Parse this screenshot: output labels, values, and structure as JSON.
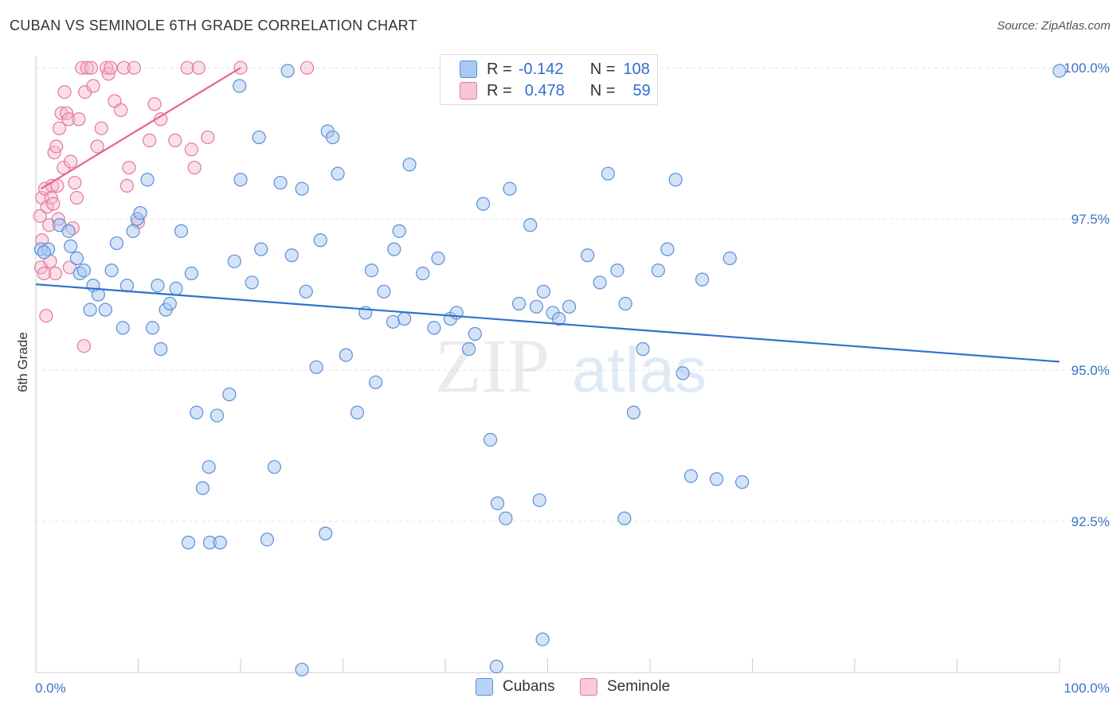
{
  "header": {
    "title": "CUBAN VS SEMINOLE 6TH GRADE CORRELATION CHART",
    "source": "Source: ZipAtlas.com"
  },
  "watermark": {
    "part1": "ZIP",
    "part2": "atlas"
  },
  "colors": {
    "blue_fill": "#a9c8f2",
    "blue_stroke": "#5b8fd6",
    "blue_line": "#2f72cc",
    "pink_fill": "#f7b8cb",
    "pink_stroke": "#e37a9c",
    "pink_line": "#e8648f",
    "axis_label": "#3a73c9"
  },
  "legend": {
    "rows": [
      {
        "r_label": "R =",
        "r_value": "-0.142",
        "n_label": "N =",
        "n_value": "108"
      },
      {
        "r_label": "R =",
        "r_value": "0.478",
        "n_label": "N =",
        "n_value": "59"
      }
    ]
  },
  "bottom_legend": {
    "cubans": "Cubans",
    "seminole": "Seminole"
  },
  "chart_data": {
    "type": "scatter",
    "ylabel": "6th Grade",
    "xlim": [
      0,
      100
    ],
    "ylim": [
      90.0,
      100.2
    ],
    "x_tick_labels": [
      "0.0%",
      "100.0%"
    ],
    "y_ticks": [
      92.5,
      95.0,
      97.5,
      100.0
    ],
    "y_tick_labels": [
      "92.5%",
      "95.0%",
      "97.5%",
      "100.0%"
    ],
    "grid": true,
    "series": [
      {
        "name": "Cubans",
        "trend": [
          [
            0,
            96.42
          ],
          [
            100,
            95.14
          ]
        ],
        "points": [
          [
            0.5,
            97.0
          ],
          [
            1.2,
            97.0
          ],
          [
            2.3,
            97.4
          ],
          [
            3.4,
            97.05
          ],
          [
            3.2,
            97.3
          ],
          [
            4.0,
            96.85
          ],
          [
            4.3,
            96.6
          ],
          [
            4.7,
            96.65
          ],
          [
            5.3,
            96.0
          ],
          [
            5.6,
            96.4
          ],
          [
            6.1,
            96.25
          ],
          [
            6.8,
            96.0
          ],
          [
            7.4,
            96.65
          ],
          [
            7.9,
            97.1
          ],
          [
            8.5,
            95.7
          ],
          [
            8.9,
            96.4
          ],
          [
            9.5,
            97.3
          ],
          [
            9.9,
            97.5
          ],
          [
            10.2,
            97.6
          ],
          [
            10.9,
            98.15
          ],
          [
            11.4,
            95.7
          ],
          [
            11.9,
            96.4
          ],
          [
            12.2,
            95.35
          ],
          [
            12.7,
            96.0
          ],
          [
            13.1,
            96.1
          ],
          [
            13.7,
            96.35
          ],
          [
            14.2,
            97.3
          ],
          [
            15.2,
            96.6
          ],
          [
            15.7,
            94.3
          ],
          [
            16.3,
            93.05
          ],
          [
            16.9,
            93.4
          ],
          [
            17.7,
            94.25
          ],
          [
            18.9,
            94.6
          ],
          [
            19.4,
            96.8
          ],
          [
            19.9,
            99.7
          ],
          [
            20.0,
            98.15
          ],
          [
            21.1,
            96.45
          ],
          [
            21.8,
            98.85
          ],
          [
            22.0,
            97.0
          ],
          [
            23.3,
            93.4
          ],
          [
            23.9,
            98.1
          ],
          [
            24.6,
            99.95
          ],
          [
            25.0,
            96.9
          ],
          [
            26.0,
            98.0
          ],
          [
            26.4,
            96.3
          ],
          [
            27.4,
            95.05
          ],
          [
            27.8,
            97.15
          ],
          [
            28.5,
            98.95
          ],
          [
            29.0,
            98.85
          ],
          [
            29.5,
            98.25
          ],
          [
            30.3,
            95.25
          ],
          [
            31.4,
            94.3
          ],
          [
            32.2,
            95.95
          ],
          [
            32.8,
            96.65
          ],
          [
            33.2,
            94.8
          ],
          [
            34.0,
            96.3
          ],
          [
            35.0,
            97.0
          ],
          [
            34.9,
            95.8
          ],
          [
            36.0,
            95.85
          ],
          [
            35.5,
            97.3
          ],
          [
            36.5,
            98.4
          ],
          [
            37.8,
            96.6
          ],
          [
            38.9,
            95.7
          ],
          [
            39.3,
            96.85
          ],
          [
            40.5,
            95.85
          ],
          [
            41.1,
            95.95
          ],
          [
            42.3,
            95.35
          ],
          [
            42.9,
            95.6
          ],
          [
            43.7,
            97.75
          ],
          [
            44.4,
            93.85
          ],
          [
            45.1,
            92.8
          ],
          [
            46.3,
            98.0
          ],
          [
            47.2,
            96.1
          ],
          [
            48.3,
            97.4
          ],
          [
            48.9,
            96.05
          ],
          [
            49.6,
            96.3
          ],
          [
            50.5,
            95.95
          ],
          [
            51.1,
            95.85
          ],
          [
            52.1,
            96.05
          ],
          [
            53.9,
            96.9
          ],
          [
            55.1,
            96.45
          ],
          [
            55.9,
            98.25
          ],
          [
            56.8,
            96.65
          ],
          [
            57.6,
            96.1
          ],
          [
            58.4,
            94.3
          ],
          [
            59.3,
            95.35
          ],
          [
            60.8,
            96.65
          ],
          [
            61.7,
            97.0
          ],
          [
            62.5,
            98.15
          ],
          [
            63.2,
            94.95
          ],
          [
            64.0,
            93.25
          ],
          [
            65.1,
            96.5
          ],
          [
            66.5,
            93.2
          ],
          [
            67.8,
            96.85
          ],
          [
            69.0,
            93.15
          ],
          [
            0.8,
            96.95
          ],
          [
            17.0,
            92.15
          ],
          [
            14.9,
            92.15
          ],
          [
            22.6,
            92.2
          ],
          [
            18.0,
            92.15
          ],
          [
            28.3,
            92.3
          ],
          [
            45.9,
            92.55
          ],
          [
            49.2,
            92.85
          ],
          [
            57.5,
            92.55
          ],
          [
            49.5,
            90.55
          ],
          [
            26.0,
            90.05
          ],
          [
            45.0,
            90.1
          ],
          [
            100.0,
            99.95
          ]
        ]
      },
      {
        "name": "Seminole",
        "trend": [
          [
            0.5,
            98.0
          ],
          [
            20.0,
            100.0
          ]
        ],
        "points": [
          [
            0.4,
            97.55
          ],
          [
            0.6,
            97.85
          ],
          [
            0.9,
            98.0
          ],
          [
            1.1,
            97.7
          ],
          [
            1.3,
            97.4
          ],
          [
            1.5,
            97.85
          ],
          [
            1.6,
            98.05
          ],
          [
            1.8,
            98.6
          ],
          [
            2.0,
            98.7
          ],
          [
            2.1,
            98.05
          ],
          [
            2.3,
            99.0
          ],
          [
            2.5,
            99.25
          ],
          [
            2.7,
            98.35
          ],
          [
            2.8,
            99.6
          ],
          [
            3.0,
            99.25
          ],
          [
            3.2,
            99.15
          ],
          [
            3.4,
            98.45
          ],
          [
            3.6,
            97.35
          ],
          [
            3.8,
            98.1
          ],
          [
            4.0,
            97.85
          ],
          [
            4.2,
            99.15
          ],
          [
            4.5,
            100.0
          ],
          [
            4.8,
            99.6
          ],
          [
            5.0,
            100.0
          ],
          [
            5.4,
            100.0
          ],
          [
            5.6,
            99.7
          ],
          [
            6.0,
            98.7
          ],
          [
            6.4,
            99.0
          ],
          [
            6.9,
            100.0
          ],
          [
            7.1,
            99.9
          ],
          [
            7.3,
            100.0
          ],
          [
            7.7,
            99.45
          ],
          [
            8.3,
            99.3
          ],
          [
            8.6,
            100.0
          ],
          [
            8.9,
            98.05
          ],
          [
            9.1,
            98.35
          ],
          [
            9.6,
            100.0
          ],
          [
            10.0,
            97.45
          ],
          [
            11.1,
            98.8
          ],
          [
            11.6,
            99.4
          ],
          [
            12.2,
            99.15
          ],
          [
            13.6,
            98.8
          ],
          [
            14.8,
            100.0
          ],
          [
            15.2,
            98.65
          ],
          [
            15.5,
            98.35
          ],
          [
            15.9,
            100.0
          ],
          [
            16.8,
            98.85
          ],
          [
            20.0,
            100.0
          ],
          [
            26.5,
            100.0
          ],
          [
            1.7,
            97.75
          ],
          [
            1.9,
            96.6
          ],
          [
            0.5,
            96.7
          ],
          [
            1.0,
            95.9
          ],
          [
            4.7,
            95.4
          ],
          [
            0.8,
            96.6
          ],
          [
            3.3,
            96.7
          ],
          [
            2.2,
            97.5
          ],
          [
            1.4,
            96.8
          ],
          [
            0.6,
            97.15
          ]
        ]
      }
    ]
  }
}
